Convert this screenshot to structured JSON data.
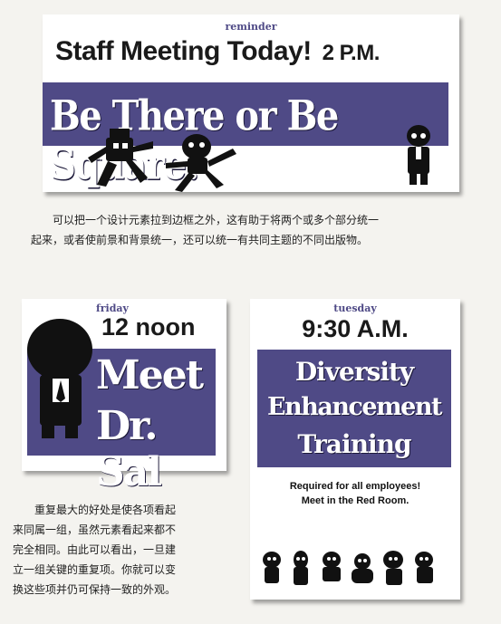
{
  "top_card": {
    "reminder_label": "reminder",
    "headline": "Staff Meeting Today!",
    "time": "2 P.M.",
    "banner": "Be There or Be Square!"
  },
  "caption_top": {
    "line1": "可以把一个设计元素拉到边框之外，这有助于将两个或多个部分统一",
    "line2": "起来，或者使前景和背景统一，还可以统一有共同主题的不同出版物。"
  },
  "left_card": {
    "day_label": "friday",
    "time": "12 noon",
    "line1": "Meet",
    "line2": "Dr. Sal"
  },
  "right_card": {
    "day_label": "tuesday",
    "time": "9:30 A.M.",
    "line1": "Diversity",
    "line2": "Enhancement",
    "line3": "Training",
    "note1": "Required for all employees!",
    "note2": "Meet in the Red Room."
  },
  "caption_bottom": {
    "line1": "重复最大的好处是使各项看起",
    "line2": "来同属一组，虽然元素看起来都不",
    "line3": "完全相同。由此可以看出，一旦建",
    "line4": "立一组关键的重复项。你就可以变",
    "line5": "换这些项并仍可保持一致的外观。"
  },
  "colors": {
    "band": "#4f4a86",
    "ink": "#1a1a1a",
    "paper": "#ffffff"
  }
}
